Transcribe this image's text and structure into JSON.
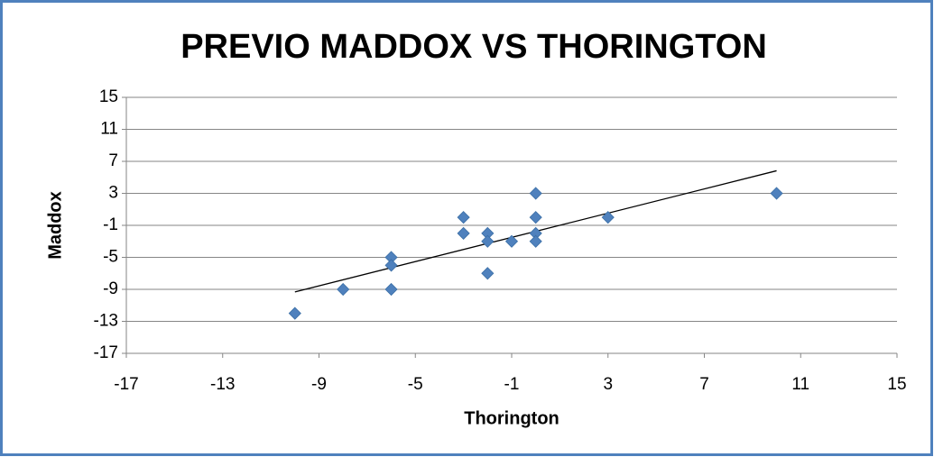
{
  "chart_data": {
    "type": "scatter",
    "title": "PREVIO  MADDOX VS THORINGTON",
    "x_label": "Thorington",
    "y_label": "Maddox",
    "series": [
      {
        "name": "Maddox",
        "color": "#4f81bd",
        "x": [
          -10,
          -8,
          -6,
          -6,
          -6,
          -3,
          -3,
          -2,
          -2,
          -2,
          -1,
          0,
          0,
          0,
          0,
          3,
          10
        ],
        "values": [
          -12,
          -9,
          -9,
          -5,
          -6,
          0,
          -2,
          -2,
          -3,
          -7,
          -3,
          3,
          0,
          -2,
          -3,
          0,
          3
        ]
      }
    ],
    "trendline": "linear",
    "xlim": [
      -17,
      15
    ],
    "xticks": [
      -17,
      -13,
      -9,
      -5,
      -1,
      3,
      7,
      11,
      15
    ],
    "ylim": [
      -17,
      15
    ],
    "yticks": [
      -17,
      -13,
      -9,
      -5,
      -1,
      3,
      7,
      11,
      15
    ],
    "grid": true
  }
}
